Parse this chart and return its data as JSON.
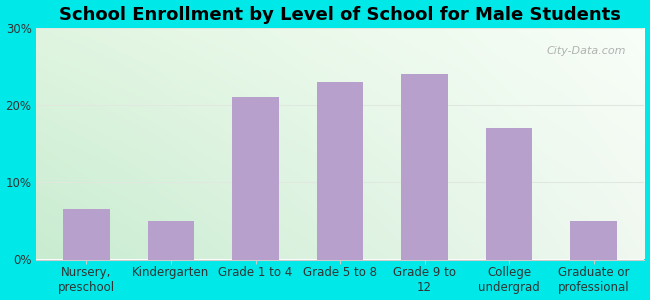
{
  "title": "School Enrollment by Level of School for Male Students",
  "categories": [
    "Nursery,\npreschool",
    "Kindergarten",
    "Grade 1 to 4",
    "Grade 5 to 8",
    "Grade 9 to\n12",
    "College\nundergrad",
    "Graduate or\nprofessional"
  ],
  "values": [
    6.5,
    5.0,
    21.0,
    23.0,
    24.0,
    17.0,
    5.0
  ],
  "bar_color": "#b8a0cc",
  "ylim": [
    0,
    30
  ],
  "yticks": [
    0,
    10,
    20,
    30
  ],
  "ytick_labels": [
    "0%",
    "10%",
    "20%",
    "30%"
  ],
  "title_fontsize": 13,
  "tick_fontsize": 8.5,
  "background_outer": "#00e8e8",
  "bg_top_left": "#e0f5e0",
  "bg_top_right": "#f8fef8",
  "bg_bottom_left": "#c8ecd0",
  "bg_bottom_right": "#f0f8f0",
  "watermark_text": "City-Data.com",
  "grid_color": "#e0e8e0"
}
